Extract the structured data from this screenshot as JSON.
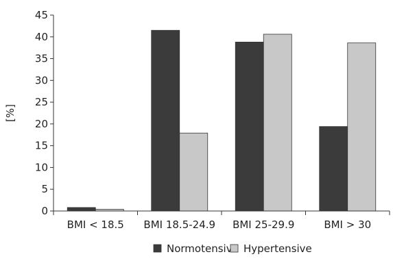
{
  "chart_data": {
    "type": "bar",
    "title": "",
    "xlabel": "",
    "ylabel": "[%]",
    "ylim": [
      0,
      45
    ],
    "yticks": [
      0,
      5,
      10,
      15,
      20,
      25,
      30,
      35,
      40,
      45
    ],
    "categories": [
      "BMI < 18.5",
      "BMI 18.5-24.9",
      "BMI 25-29.9",
      "BMI > 30"
    ],
    "series": [
      {
        "name": "Normotensive",
        "values": [
          0.8,
          41.5,
          38.8,
          19.4
        ],
        "color": "#3b3b3b"
      },
      {
        "name": "Hypertensive",
        "values": [
          0.4,
          17.9,
          40.6,
          38.6
        ],
        "color": "#c8c8c8"
      }
    ],
    "legend_position": "bottom",
    "grid": false
  }
}
